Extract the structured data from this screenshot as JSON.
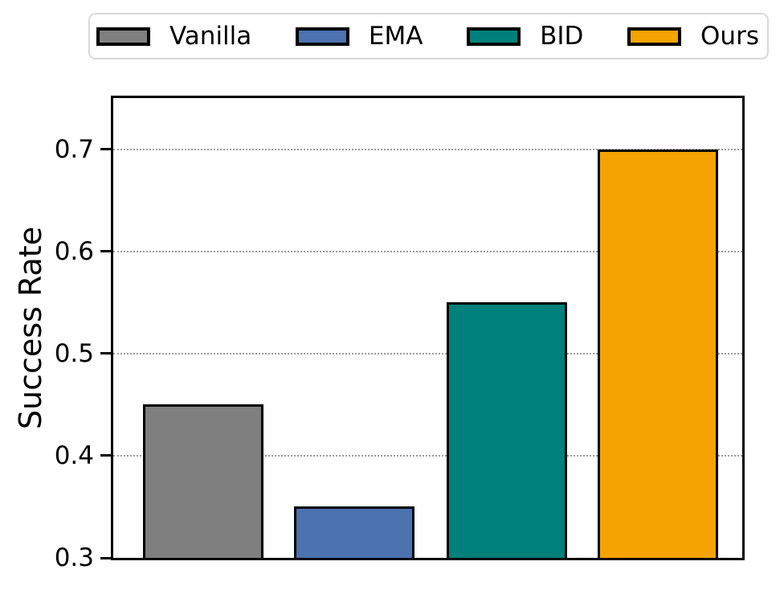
{
  "chart_data": {
    "type": "bar",
    "categories": [
      "Vanilla",
      "EMA",
      "BID",
      "Ours"
    ],
    "values": [
      0.45,
      0.35,
      0.55,
      0.7
    ],
    "bar_colors": [
      "#7f7f7f",
      "#4c72b0",
      "#00807a",
      "#f5a302"
    ],
    "bar_edge_color": "#000000",
    "title": "",
    "xlabel": "",
    "ylabel": "Success Rate",
    "ylim": [
      0.3,
      0.75
    ],
    "yticks": [
      0.3,
      0.4,
      0.5,
      0.6,
      0.7
    ],
    "ytick_labels": [
      "0.3",
      "0.4",
      "0.5",
      "0.6",
      "0.7"
    ],
    "xtick_labels": [],
    "grid": "horizontal-dotted",
    "grid_color": "#9b9b9b",
    "legend": {
      "position": "top",
      "entries": [
        {
          "label": "Vanilla",
          "color": "#7f7f7f"
        },
        {
          "label": "EMA",
          "color": "#4c72b0"
        },
        {
          "label": "BID",
          "color": "#00807a"
        },
        {
          "label": "Ours",
          "color": "#f5a302"
        }
      ]
    }
  }
}
